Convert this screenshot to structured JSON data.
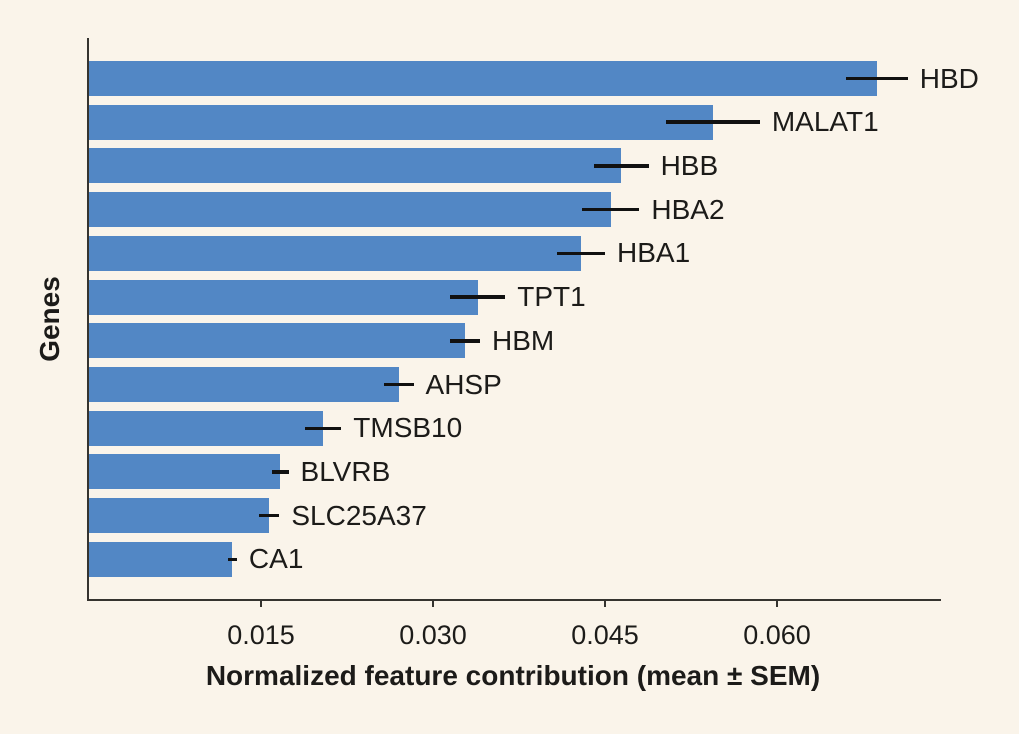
{
  "figure": {
    "background": "#faf4ea",
    "text_color": "#1c1b19",
    "spine_color": "#35332f"
  },
  "chart_data": {
    "type": "bar",
    "orientation": "horizontal",
    "title": "",
    "xlabel": "Normalized feature contribution (mean ± SEM)",
    "ylabel": "Genes",
    "xlim": [
      0,
      0.0743
    ],
    "grid": false,
    "legend": "none",
    "xticks": [
      0.015,
      0.03,
      0.045,
      0.06
    ],
    "xtick_labels": [
      "0.015",
      "0.030",
      "0.045",
      "0.060"
    ],
    "categories": [
      "HBD",
      "MALAT1",
      "HBB",
      "HBA2",
      "HBA1",
      "TPT1",
      "HBM",
      "AHSP",
      "TMSB10",
      "BLVRB",
      "SLC25A37",
      "CA1"
    ],
    "series": [
      {
        "name": "mean normalized feature contribution",
        "values": [
          0.0687,
          0.0544,
          0.0464,
          0.0455,
          0.0429,
          0.0339,
          0.0328,
          0.027,
          0.0204,
          0.0167,
          0.0157,
          0.0125
        ],
        "sem": [
          0.0027,
          0.0041,
          0.0024,
          0.0025,
          0.0021,
          0.0024,
          0.0013,
          0.0013,
          0.0016,
          0.0007,
          0.0009,
          0.0004
        ]
      }
    ],
    "bar_color": "#5287c5",
    "error_color": "#111111"
  }
}
